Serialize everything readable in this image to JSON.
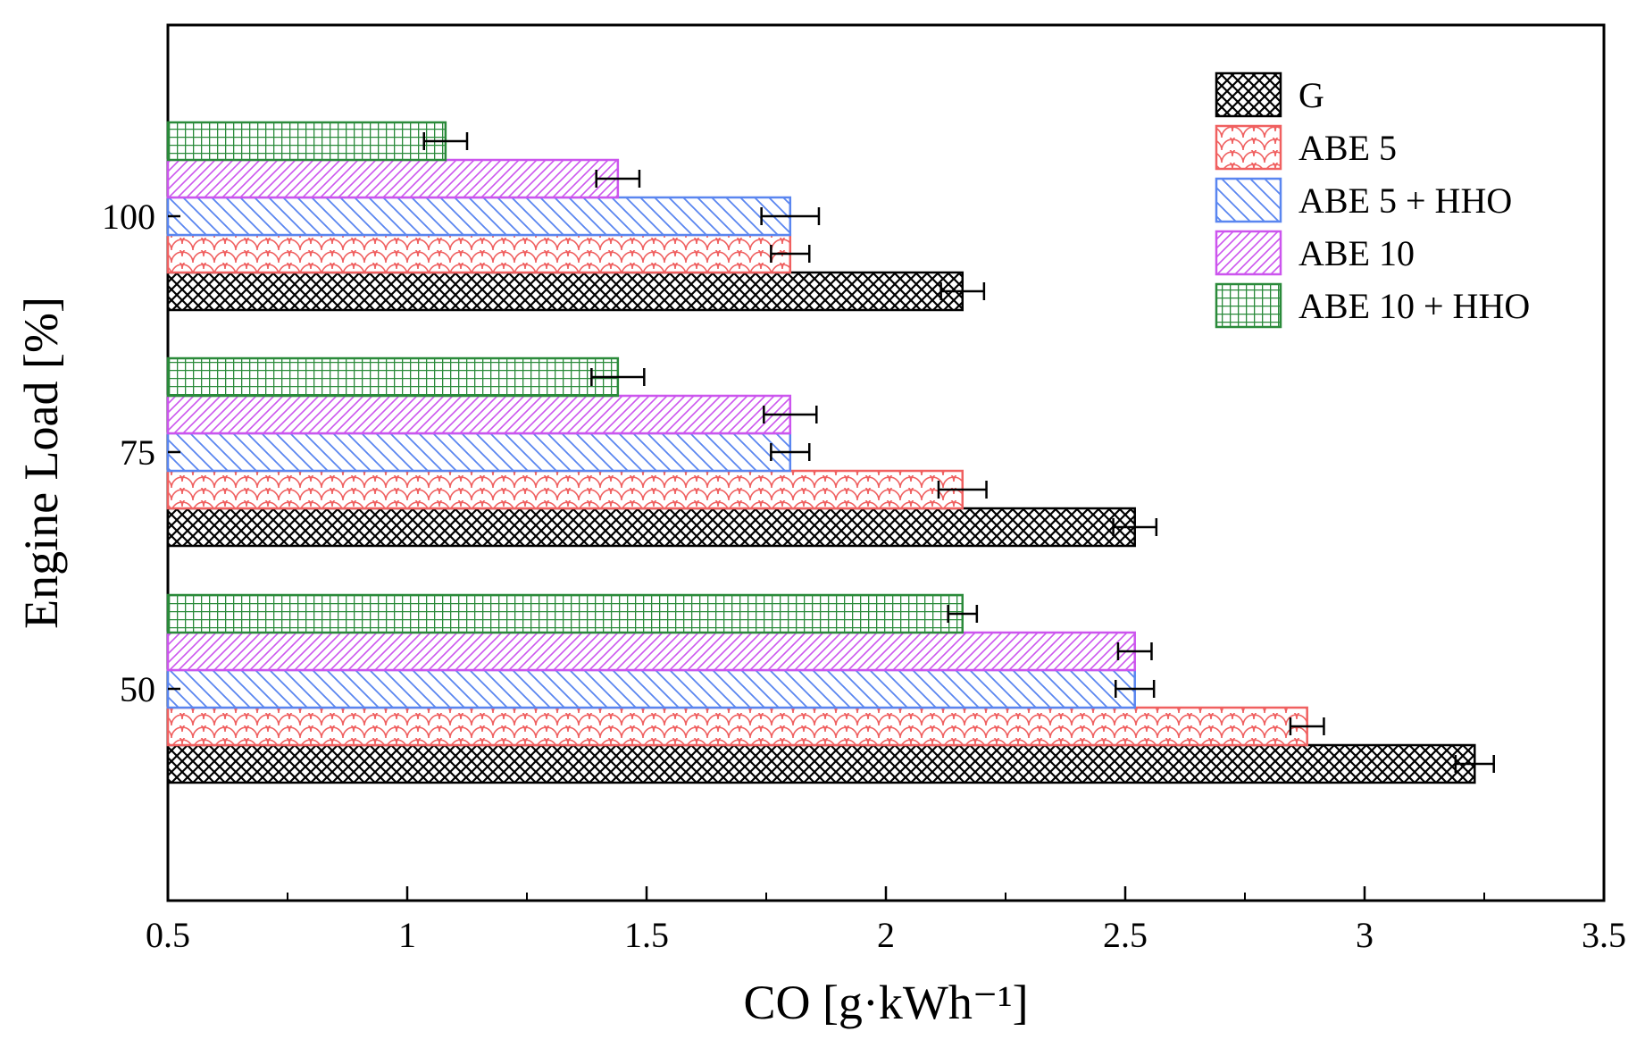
{
  "chart_data": {
    "type": "bar",
    "orientation": "horizontal",
    "title": "",
    "xlabel": "CO [g·kWh⁻¹]",
    "ylabel": "Engine Load [%]",
    "xlim": [
      0.5,
      3.5
    ],
    "x_ticks": [
      "0.5",
      "1",
      "1.5",
      "2",
      "2.5",
      "3",
      "3.5"
    ],
    "x_tick_values": [
      0.5,
      1,
      1.5,
      2,
      2.5,
      3,
      3.5
    ],
    "categories": [
      "50",
      "75",
      "100"
    ],
    "legend_position": "top-right",
    "grid": false,
    "series": [
      {
        "name": "G",
        "values": [
          3.23,
          2.52,
          2.16
        ],
        "errors": [
          0.04,
          0.045,
          0.045
        ],
        "color": "#000000",
        "pattern": "crosshatch"
      },
      {
        "name": "ABE 5",
        "values": [
          2.88,
          2.16,
          1.8
        ],
        "errors": [
          0.035,
          0.05,
          0.04
        ],
        "color": "#f06060",
        "pattern": "scales"
      },
      {
        "name": "ABE 5 + HHO",
        "values": [
          2.52,
          1.8,
          1.8
        ],
        "errors": [
          0.04,
          0.04,
          0.06
        ],
        "color": "#5a86f0",
        "pattern": "diagonal-down"
      },
      {
        "name": "ABE 10",
        "values": [
          2.52,
          1.8,
          1.44
        ],
        "errors": [
          0.035,
          0.055,
          0.045
        ],
        "color": "#cc55ee",
        "pattern": "diagonal-up"
      },
      {
        "name": "ABE 10 + HHO",
        "values": [
          2.16,
          1.44,
          1.08
        ],
        "errors": [
          0.03,
          0.055,
          0.045
        ],
        "color": "#2a8a3a",
        "pattern": "grid"
      }
    ]
  }
}
